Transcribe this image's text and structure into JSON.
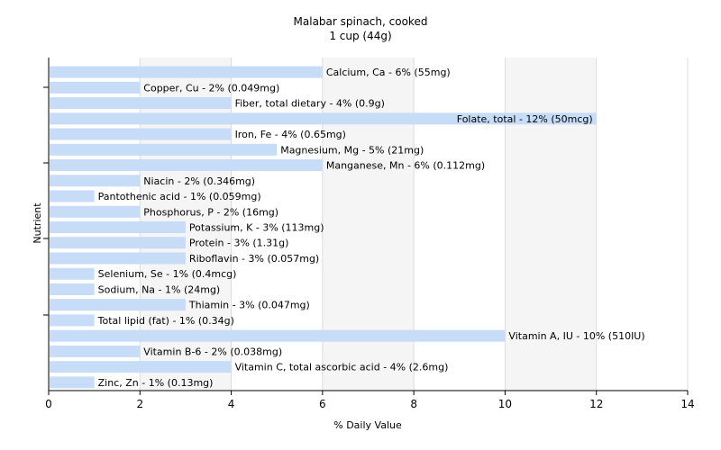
{
  "chart_data": {
    "type": "bar",
    "orientation": "horizontal",
    "title": "Malabar spinach, cooked",
    "subtitle": "1 cup (44g)",
    "xlabel": "% Daily Value",
    "ylabel": "Nutrient",
    "xlim": [
      0,
      14
    ],
    "xticks": [
      "0",
      "2",
      "4",
      "6",
      "8",
      "10",
      "12",
      "14"
    ],
    "grid": "vertical",
    "bar_color": "#c6dcf7",
    "gridline_color": "#dddddd",
    "background_band_color": "#f5f5f5",
    "categories": [
      "Calcium, Ca",
      "Copper, Cu",
      "Fiber, total dietary",
      "Folate, total",
      "Iron, Fe",
      "Magnesium, Mg",
      "Manganese, Mn",
      "Niacin",
      "Pantothenic acid",
      "Phosphorus, P",
      "Potassium, K",
      "Protein",
      "Riboflavin",
      "Selenium, Se",
      "Sodium, Na",
      "Thiamin",
      "Total lipid (fat)",
      "Vitamin A, IU",
      "Vitamin B-6",
      "Vitamin C, total ascorbic acid",
      "Zinc, Zn"
    ],
    "values": [
      6,
      2,
      4,
      12,
      4,
      5,
      6,
      2,
      1,
      2,
      3,
      3,
      3,
      1,
      1,
      3,
      1,
      10,
      2,
      4,
      1
    ],
    "labels": [
      "Calcium, Ca - 6% (55mg)",
      "Copper, Cu - 2% (0.049mg)",
      "Fiber, total dietary - 4% (0.9g)",
      "Folate, total - 12% (50mcg)",
      "Iron, Fe - 4% (0.65mg)",
      "Magnesium, Mg - 5% (21mg)",
      "Manganese, Mn - 6% (0.112mg)",
      "Niacin - 2% (0.346mg)",
      "Pantothenic acid - 1% (0.059mg)",
      "Phosphorus, P - 2% (16mg)",
      "Potassium, K - 3% (113mg)",
      "Protein - 3% (1.31g)",
      "Riboflavin - 3% (0.057mg)",
      "Selenium, Se - 1% (0.4mcg)",
      "Sodium, Na - 1% (24mg)",
      "Thiamin - 3% (0.047mg)",
      "Total lipid (fat) - 1% (0.34g)",
      "Vitamin A, IU - 10% (510IU)",
      "Vitamin B-6 - 2% (0.038mg)",
      "Vitamin C, total ascorbic acid - 4% (2.6mg)",
      "Zinc, Zn - 1% (0.13mg)"
    ]
  }
}
